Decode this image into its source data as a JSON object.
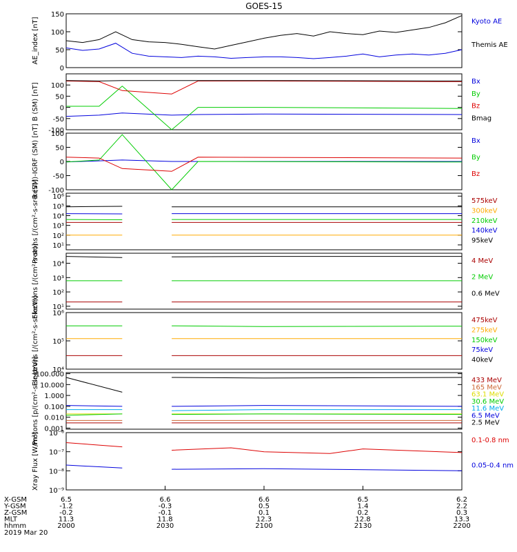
{
  "title": "GOES-15",
  "time_axis": {
    "ticks": [
      "2000",
      "2030",
      "2100",
      "2130",
      "2200"
    ],
    "date": "2019 Mar 20",
    "rows": [
      {
        "label": "X-GSM",
        "values": [
          "6.5",
          "6.6",
          "6.6",
          "6.5",
          "6.2"
        ]
      },
      {
        "label": "Y-GSM",
        "values": [
          "-1.2",
          "-0.3",
          "0.5",
          "1.4",
          "2.2"
        ]
      },
      {
        "label": "Z-GSM",
        "values": [
          "-0.2",
          "-0.1",
          "0.1",
          "0.2",
          "0.3"
        ]
      },
      {
        "label": "MLT",
        "values": [
          "11.3",
          "11.8",
          "12.3",
          "12.8",
          "13.3"
        ]
      },
      {
        "label": "hhmm",
        "values": [
          "2000",
          "2030",
          "2100",
          "2130",
          "2200"
        ]
      }
    ]
  },
  "colors": {
    "black": "#000000",
    "blue": "#0000dd",
    "green": "#00cc00",
    "red": "#dd0000",
    "orange": "#ffaa00",
    "darkred": "#aa0000",
    "cyan": "#00aaee",
    "yellow": "#dddd00",
    "sienna": "#cc6633"
  },
  "chart_data": [
    {
      "type": "line",
      "ylabel": "AE_index [nT]",
      "ylim": [
        0,
        150
      ],
      "yticks": [
        "0",
        "50",
        "100",
        "150"
      ],
      "series": [
        {
          "name": "Kyoto AE",
          "color": "blue",
          "x": [
            2000,
            2005,
            2010,
            2015,
            2020,
            2025,
            2030,
            2035,
            2040,
            2045,
            2050,
            2055,
            2100,
            2105,
            2110,
            2115,
            2120,
            2125,
            2130,
            2135,
            2140,
            2145,
            2150,
            2155,
            2200
          ],
          "values": [
            55,
            48,
            52,
            68,
            40,
            32,
            30,
            28,
            32,
            30,
            26,
            28,
            30,
            30,
            28,
            25,
            28,
            32,
            38,
            30,
            35,
            38,
            35,
            40,
            50
          ]
        },
        {
          "name": "Themis AE",
          "color": "black",
          "x": [
            2000,
            2005,
            2010,
            2015,
            2020,
            2025,
            2030,
            2035,
            2040,
            2045,
            2050,
            2055,
            2100,
            2105,
            2110,
            2115,
            2120,
            2125,
            2130,
            2135,
            2140,
            2145,
            2150,
            2155,
            2200
          ],
          "values": [
            75,
            70,
            78,
            100,
            78,
            72,
            70,
            65,
            58,
            52,
            62,
            72,
            82,
            90,
            95,
            88,
            100,
            95,
            92,
            102,
            98,
            105,
            112,
            125,
            145
          ]
        }
      ]
    },
    {
      "type": "line",
      "ylabel": "B (SM) [nT]",
      "ylim": [
        -100,
        150
      ],
      "yticks": [
        "-100",
        "-50",
        "0",
        "50",
        "100"
      ],
      "series": [
        {
          "name": "Bx",
          "color": "blue",
          "x": [
            2000,
            2010,
            2017,
            2032,
            2040,
            2100,
            2200
          ],
          "values": [
            -40,
            -35,
            -25,
            -35,
            -32,
            -30,
            -32
          ]
        },
        {
          "name": "By",
          "color": "green",
          "x": [
            2000,
            2010,
            2017,
            2032,
            2040,
            2100,
            2200
          ],
          "values": [
            5,
            5,
            95,
            -100,
            0,
            0,
            -5
          ]
        },
        {
          "name": "Bz",
          "color": "red",
          "x": [
            2000,
            2010,
            2017,
            2032,
            2040,
            2100,
            2200
          ],
          "values": [
            118,
            115,
            75,
            60,
            118,
            118,
            115
          ]
        },
        {
          "name": "Bmag",
          "color": "black",
          "x": [
            2000,
            2010,
            2017,
            2032,
            2040,
            2100,
            2200
          ],
          "values": [
            120,
            118,
            120,
            120,
            120,
            120,
            118
          ]
        }
      ]
    },
    {
      "type": "line",
      "ylabel": "B (SM)-IGRF (SM) [nT]",
      "ylim": [
        -100,
        100
      ],
      "yticks": [
        "-100",
        "-50",
        "0",
        "50",
        "100"
      ],
      "series": [
        {
          "name": "Bx",
          "color": "blue",
          "x": [
            2000,
            2017,
            2032,
            2200
          ],
          "values": [
            -2,
            5,
            0,
            0
          ]
        },
        {
          "name": "By",
          "color": "green",
          "x": [
            2000,
            2010,
            2017,
            2032,
            2040,
            2200
          ],
          "values": [
            -2,
            5,
            95,
            -100,
            0,
            -2
          ]
        },
        {
          "name": "Bz",
          "color": "red",
          "x": [
            2000,
            2010,
            2017,
            2032,
            2040,
            2200
          ],
          "values": [
            15,
            12,
            -25,
            -35,
            15,
            12
          ]
        }
      ]
    },
    {
      "type": "line",
      "ylabel": "Protons [/(cm²-s-sr-keV)]",
      "log_scale": true,
      "ylim_log10": [
        0.5,
        6.3
      ],
      "yticks": [
        "10¹",
        "10²",
        "10³",
        "10⁴",
        "10⁵",
        "10⁶"
      ],
      "gap": [
        2017,
        2032
      ],
      "series": [
        {
          "name": "575keV",
          "color": "darkred",
          "values": [
            2000,
            2000,
            2000,
            2000,
            2000
          ]
        },
        {
          "name": "300keV",
          "color": "orange",
          "values": [
            100,
            100,
            100,
            100,
            100
          ]
        },
        {
          "name": "210keV",
          "color": "green",
          "values": [
            4000,
            3800,
            4000,
            4000,
            4000
          ]
        },
        {
          "name": "140keV",
          "color": "blue",
          "values": [
            16000,
            15000,
            16000,
            16000,
            16000
          ]
        },
        {
          "name": "95keV",
          "color": "black",
          "values": [
            80000,
            90000,
            80000,
            80000,
            80000
          ]
        }
      ],
      "x": [
        2000,
        2017,
        2032,
        2100,
        2200
      ]
    },
    {
      "type": "line",
      "ylabel": "Electrons [/(cm²-s-sr)]",
      "log_scale": true,
      "ylim_log10": [
        0.8,
        4.7
      ],
      "yticks": [
        "10¹",
        "10²",
        "10³",
        "10⁴"
      ],
      "gap": [
        2017,
        2032
      ],
      "series": [
        {
          "name": "4 MeV",
          "color": "darkred",
          "values": [
            20,
            20,
            20,
            20,
            20
          ]
        },
        {
          "name": "2 MeV",
          "color": "green",
          "values": [
            600,
            600,
            600,
            600,
            600
          ]
        },
        {
          "name": "0.6 MeV",
          "color": "black",
          "values": [
            30000,
            25000,
            28000,
            30000,
            30000
          ]
        }
      ],
      "x": [
        2000,
        2017,
        2032,
        2100,
        2200
      ]
    },
    {
      "type": "line",
      "ylabel": "Electrons [/(cm²-s-sr-keV)]",
      "log_scale": true,
      "ylim_log10": [
        4.0,
        6.0
      ],
      "yticks": [
        "10⁴",
        "10⁵",
        "10⁶"
      ],
      "gap": [
        2017,
        2032
      ],
      "series": [
        {
          "name": "475keV",
          "color": "darkred",
          "values": [
            30000,
            30000,
            30000,
            30000,
            30000
          ]
        },
        {
          "name": "275keV",
          "color": "orange",
          "values": [
            120000,
            120000,
            120000,
            120000,
            120000
          ]
        },
        {
          "name": "150keV",
          "color": "green",
          "values": [
            340000,
            340000,
            340000,
            320000,
            330000
          ]
        },
        {
          "name": "75keV",
          "color": "blue",
          "values": [
            null,
            null,
            null,
            null,
            null
          ]
        },
        {
          "name": "40keV",
          "color": "black",
          "values": [
            null,
            null,
            null,
            null,
            null
          ]
        }
      ],
      "x": [
        2000,
        2017,
        2032,
        2100,
        2200
      ]
    },
    {
      "type": "line",
      "ylabel": "Protons [p/(cm²-s-sr-keV)]",
      "log_scale": true,
      "ylim_log10": [
        -3.1,
        2.1
      ],
      "yticks": [
        "0.001",
        "0.010",
        "0.100",
        "1.000",
        "10.000",
        "100.000"
      ],
      "gap": [
        2017,
        2032
      ],
      "series": [
        {
          "name": "433 MeV",
          "color": "darkred",
          "values": [
            0.003,
            0.003,
            0.003,
            0.003,
            0.003
          ]
        },
        {
          "name": "165 MeV",
          "color": "sienna",
          "values": [
            0.005,
            0.005,
            0.005,
            0.005,
            0.005
          ]
        },
        {
          "name": "63.1 MeV",
          "color": "yellow",
          "values": [
            0.02,
            0.02,
            0.02,
            0.02,
            0.02
          ]
        },
        {
          "name": "30.6 MeV",
          "color": "green",
          "values": [
            0.015,
            0.02,
            0.018,
            0.02,
            0.018
          ]
        },
        {
          "name": "11.6 MeV",
          "color": "cyan",
          "values": [
            0.05,
            0.05,
            0.04,
            0.05,
            0.05
          ]
        },
        {
          "name": "6.5 MeV",
          "color": "blue",
          "values": [
            0.12,
            0.1,
            0.1,
            0.12,
            0.1
          ]
        },
        {
          "name": "2.5 MeV",
          "color": "black",
          "values": [
            45,
            2,
            45,
            40,
            45
          ]
        }
      ],
      "x": [
        2000,
        2017,
        2032,
        2100,
        2200
      ]
    },
    {
      "type": "line",
      "ylabel": "Xray Flux [W/m²]",
      "log_scale": true,
      "ylim_log10": [
        -9,
        -6
      ],
      "yticks": [
        "10⁻⁹",
        "10⁻⁸",
        "10⁻⁷",
        "10⁻⁶"
      ],
      "gap": [
        2017,
        2032
      ],
      "series": [
        {
          "name": "0.1-0.8 nm",
          "color": "red",
          "x": [
            2000,
            2017,
            2032,
            2050,
            2100,
            2120,
            2130,
            2200
          ],
          "values": [
            3e-07,
            1.8e-07,
            1.2e-07,
            1.6e-07,
            1e-07,
            8e-08,
            1.4e-07,
            9e-08
          ]
        },
        {
          "name": "0.05-0.4 nm",
          "color": "blue",
          "x": [
            2000,
            2017,
            2032,
            2100,
            2200
          ],
          "values": [
            2e-08,
            1.4e-08,
            1.2e-08,
            1.3e-08,
            1e-08
          ]
        }
      ]
    }
  ]
}
